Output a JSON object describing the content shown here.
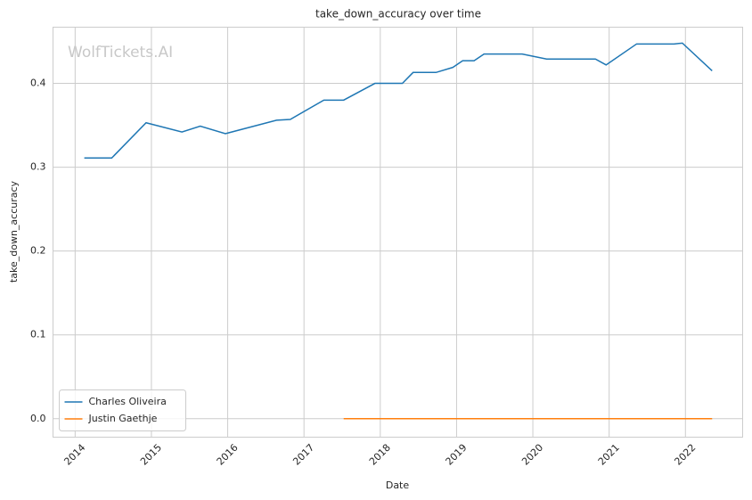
{
  "chart_data": {
    "type": "line",
    "title": "take_down_accuracy over time",
    "watermark": "WolfTickets.AI",
    "x_label": "Date",
    "y_label": "take_down_accuracy",
    "series": [
      {
        "name": "Charles Oliveira",
        "color": "#1f77b4",
        "x": [
          2014.12,
          2014.48,
          2014.93,
          2015.4,
          2015.64,
          2015.97,
          2016.64,
          2016.82,
          2017.26,
          2017.52,
          2017.93,
          2018.29,
          2018.43,
          2018.73,
          2018.95,
          2019.08,
          2019.23,
          2019.36,
          2019.86,
          2020.18,
          2020.82,
          2020.96,
          2021.36,
          2021.85,
          2021.96,
          2022.35
        ],
        "values": [
          0.311,
          0.311,
          0.353,
          0.342,
          0.349,
          0.34,
          0.356,
          0.357,
          0.38,
          0.38,
          0.4,
          0.4,
          0.413,
          0.413,
          0.419,
          0.427,
          0.427,
          0.435,
          0.435,
          0.429,
          0.429,
          0.422,
          0.447,
          0.447,
          0.448,
          0.415
        ]
      },
      {
        "name": "Justin Gaethje",
        "color": "#ff7f0e",
        "x": [
          2017.52,
          2022.35
        ],
        "values": [
          0,
          0
        ]
      }
    ],
    "xlim": [
      2013.71,
      2022.75
    ],
    "xticks": [
      2014,
      2015,
      2016,
      2017,
      2018,
      2019,
      2020,
      2021,
      2022
    ],
    "ylim": [
      -0.022,
      0.467
    ],
    "yticks": [
      {
        "value": 0,
        "label": "0.0"
      },
      0.1,
      0.2,
      0.3,
      0.4
    ],
    "grid": true,
    "legend": "lower left"
  }
}
